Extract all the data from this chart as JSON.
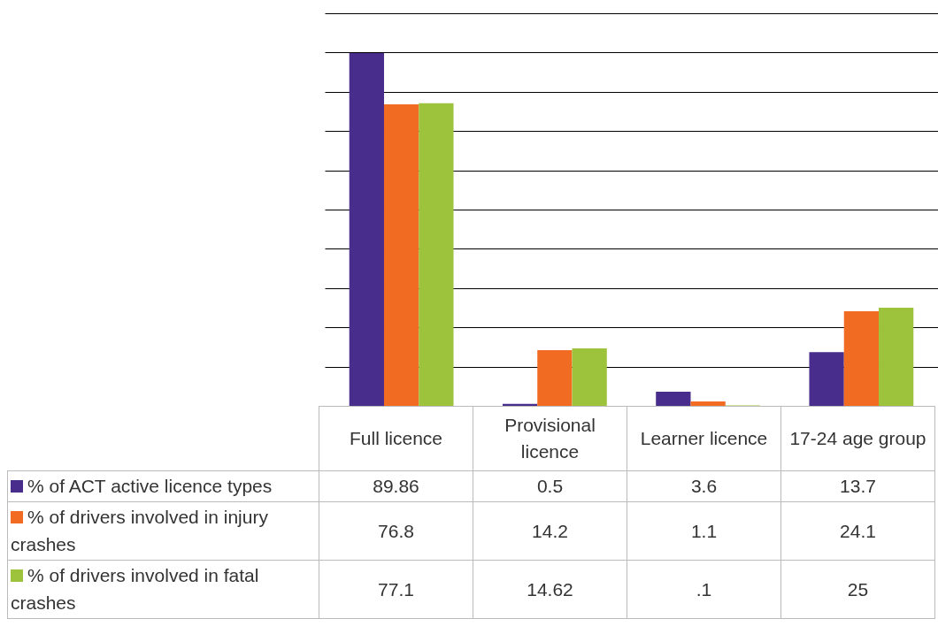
{
  "chart_data": {
    "type": "bar",
    "categories": [
      "Full licence",
      "Provisional licence",
      "Learner licence",
      "17-24 age group"
    ],
    "series": [
      {
        "name": "% of ACT active licence types",
        "color": "#482d8c",
        "values": [
          89.86,
          0.5,
          3.6,
          13.7
        ]
      },
      {
        "name": "% of drivers involved in injury crashes",
        "color": "#f26b22",
        "values": [
          76.8,
          14.2,
          1.1,
          24.1
        ]
      },
      {
        "name": "% of drivers involved in fatal crashes",
        "color": "#9dc23b",
        "values": [
          77.1,
          14.62,
          0.1,
          25
        ],
        "value_labels": [
          "77.1",
          "14.62",
          ".1",
          "25"
        ]
      }
    ],
    "ylim": [
      0,
      100
    ],
    "yticks": [
      {
        "value": 0,
        "label": null
      },
      {
        "value": 10,
        "label": null
      },
      {
        "value": 20,
        "label": null
      },
      {
        "value": 30,
        "label": null
      },
      {
        "value": 40,
        "label": null
      },
      {
        "value": 50,
        "label": null
      },
      {
        "value": 60,
        "label": null
      },
      {
        "value": 70,
        "label": null
      },
      {
        "value": 80,
        "label": null
      },
      {
        "value": 90,
        "label": null
      },
      {
        "value": 100,
        "label": null
      }
    ],
    "grid": "y",
    "legend": "bottom left",
    "data_labels": true
  }
}
